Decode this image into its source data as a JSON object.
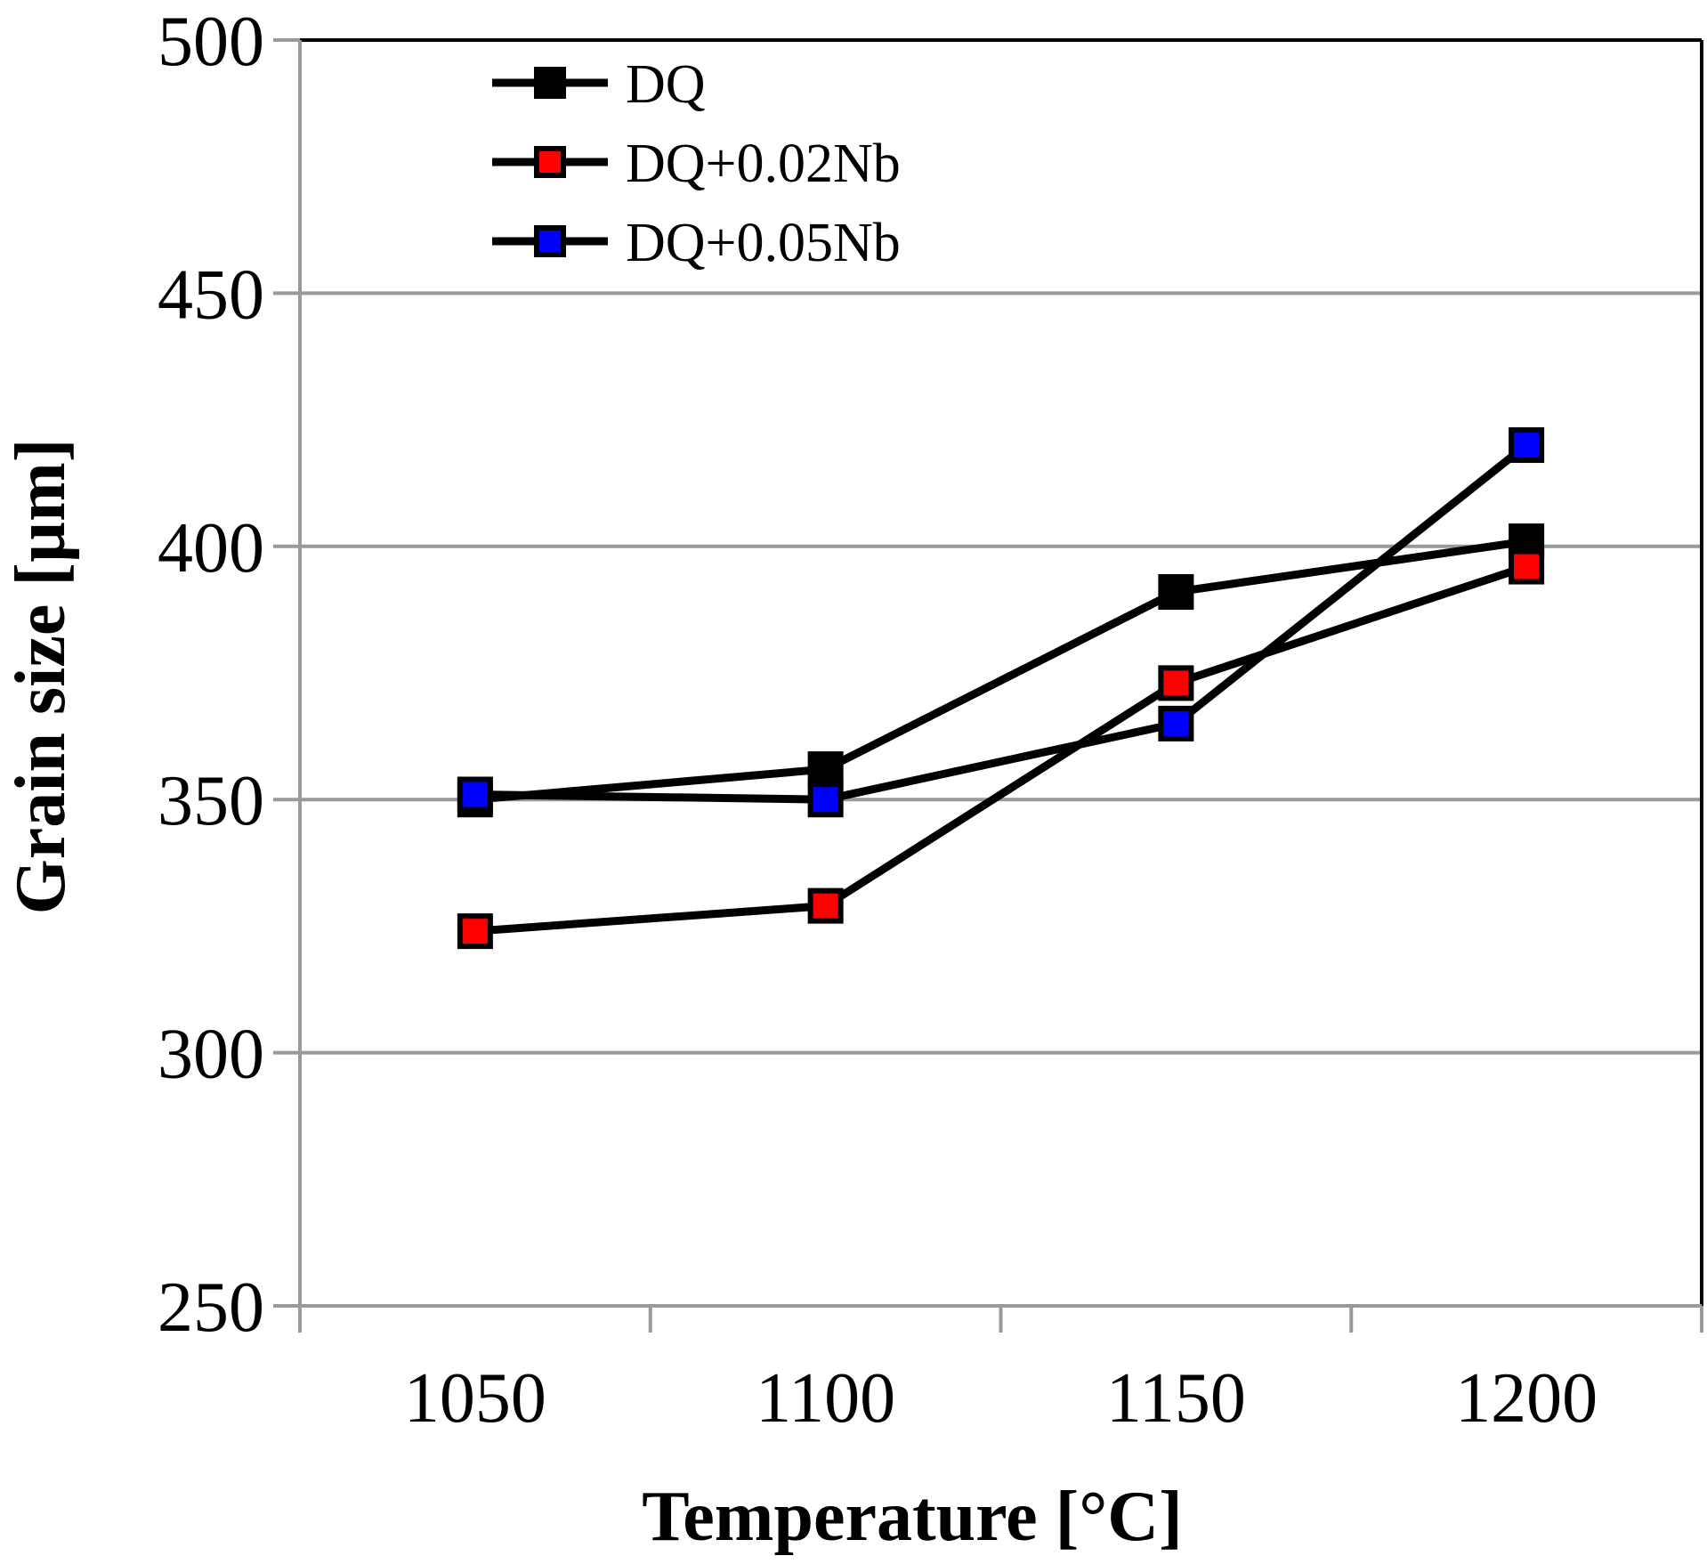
{
  "chart_data": {
    "type": "line",
    "title": "",
    "xlabel": "Temperature [°C]",
    "ylabel": "Grain size [µm]",
    "categories": [
      "1050",
      "1100",
      "1150",
      "1200"
    ],
    "ylim": [
      250,
      500
    ],
    "yticks": [
      "250",
      "300",
      "350",
      "400",
      "450",
      "500"
    ],
    "grid": true,
    "legend_position": "top-left",
    "series": [
      {
        "name": "DQ",
        "values": [
          350,
          356,
          391,
          401
        ],
        "marker_color": "#000000"
      },
      {
        "name": "DQ+0.02Nb",
        "values": [
          324,
          329,
          373,
          396
        ],
        "marker_color": "#ff0000"
      },
      {
        "name": "DQ+0.05Nb",
        "values": [
          351,
          350,
          365,
          420
        ],
        "marker_color": "#0000ff"
      }
    ],
    "line_color": "#000000",
    "grid_color": "#999999"
  }
}
